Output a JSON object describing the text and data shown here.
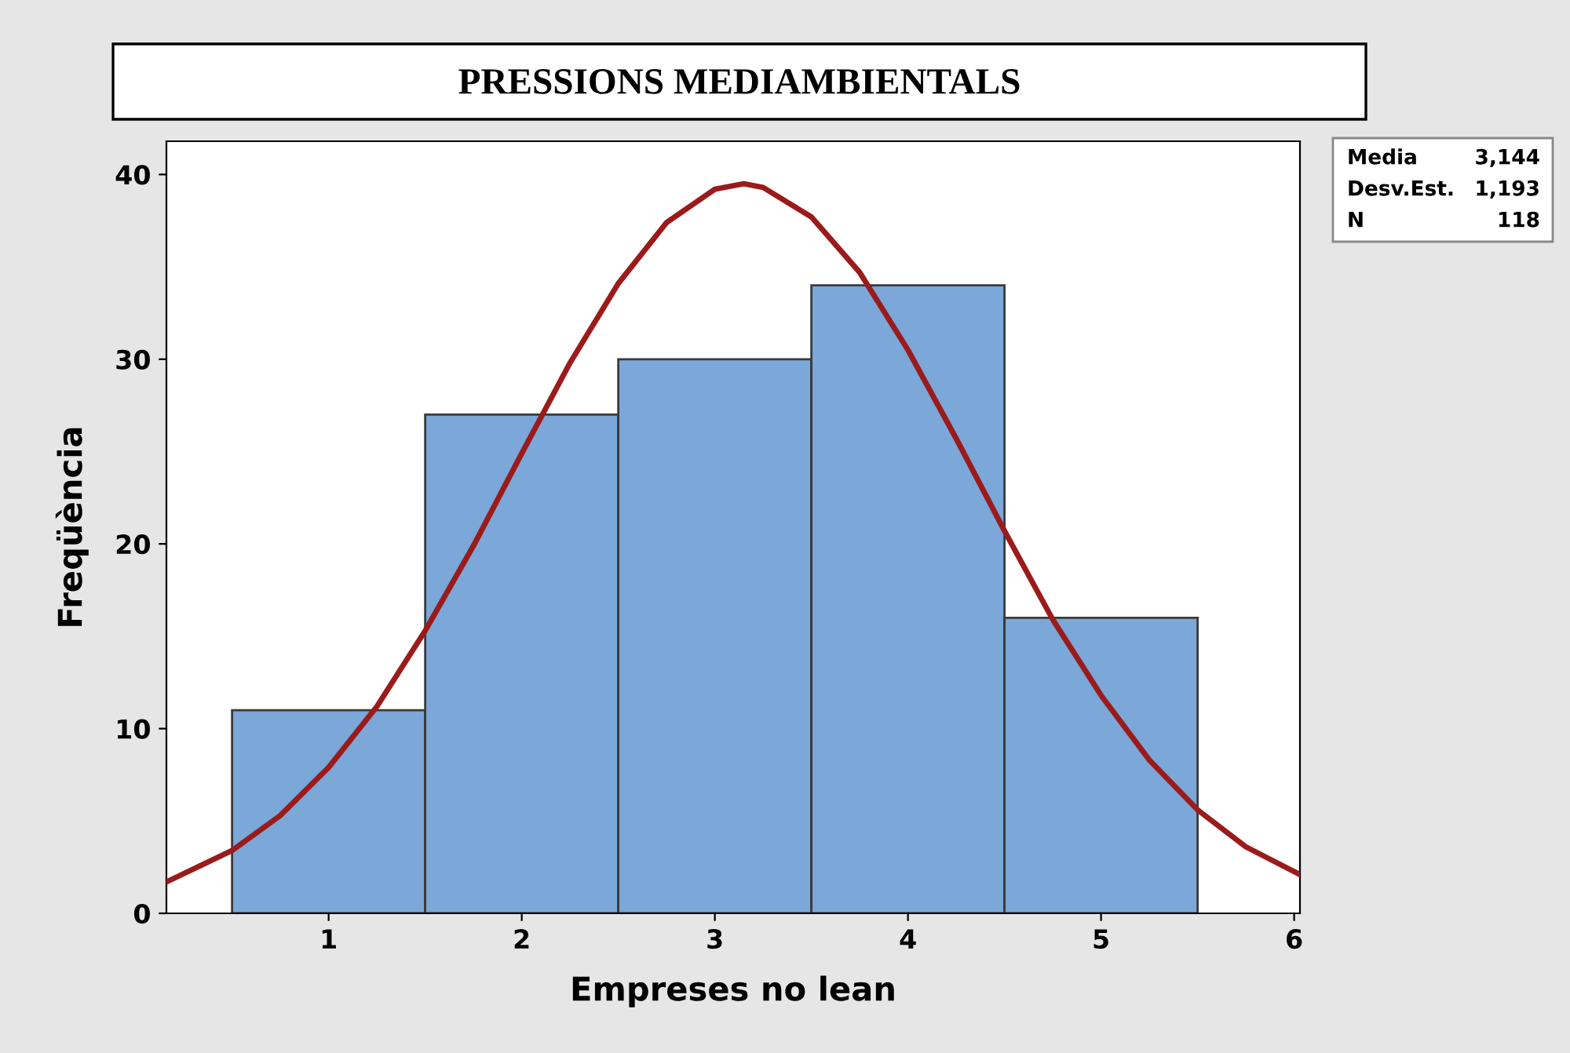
{
  "chart_data": {
    "type": "histogram",
    "title": "PRESSIONS MEDIAMBIENTALS",
    "xlabel": "Empreses no lean",
    "ylabel": "Freqüència",
    "bins": [
      0.5,
      1.5,
      2.5,
      3.5,
      4.5,
      5.5
    ],
    "values": [
      11,
      27,
      30,
      34,
      16
    ],
    "color": "#7ba7d9",
    "series": [
      {
        "type": "line",
        "color": "#9b1b1b",
        "x": [
          0.16,
          0.5,
          0.75,
          1.0,
          1.25,
          1.5,
          1.75,
          2.0,
          2.25,
          2.5,
          2.75,
          3.0,
          3.15,
          3.25,
          3.5,
          3.75,
          4.0,
          4.25,
          4.5,
          4.75,
          5.0,
          5.25,
          5.5,
          5.75,
          6.03
        ],
        "values": [
          1.7,
          3.4,
          5.3,
          7.9,
          11.2,
          15.3,
          19.9,
          24.9,
          29.8,
          34.1,
          37.4,
          39.2,
          39.5,
          39.3,
          37.7,
          34.7,
          30.5,
          25.7,
          20.7,
          15.9,
          11.8,
          8.3,
          5.6,
          3.6,
          2.1
        ]
      }
    ],
    "xlim": [
      0.16,
      6.03
    ],
    "ylim": [
      0,
      41.8
    ],
    "xticks": [
      1,
      2,
      3,
      4,
      5,
      6
    ],
    "yticks": [
      0,
      10,
      20,
      30,
      40
    ],
    "grid": false,
    "annotations": [
      "Media",
      "3,144",
      "Desv.Est.",
      "1,193",
      "N",
      "118"
    ]
  }
}
